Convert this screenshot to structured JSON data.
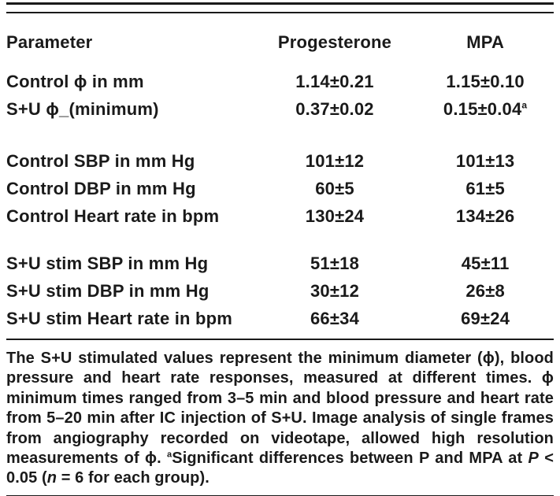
{
  "page": {
    "background": "#ffffff",
    "text_color": "#1a1a1a",
    "rule_color": "#1a1a1a"
  },
  "table": {
    "header": {
      "parameter": "Parameter",
      "progesterone": "Progesterone",
      "mpa": "MPA"
    },
    "groups": [
      {
        "rows": [
          {
            "label": "Control ϕ in mm",
            "progesterone": "1.14±0.21",
            "mpa": "1.15±0.10"
          },
          {
            "label": "S+U ϕ_(minimum)",
            "progesterone": "0.37±0.02",
            "mpa": "0.15±0.04",
            "mpa_sup": "a"
          }
        ]
      },
      {
        "rows": [
          {
            "label": "Control SBP in mm Hg",
            "progesterone": "101±12",
            "mpa": "101±13"
          },
          {
            "label": "Control DBP in mm Hg",
            "progesterone": "60±5",
            "mpa": "61±5"
          },
          {
            "label": "Control Heart rate in bpm",
            "progesterone": "130±24",
            "mpa": "134±26"
          }
        ]
      },
      {
        "rows": [
          {
            "label": "S+U stim SBP in mm Hg",
            "progesterone": "51±18",
            "mpa": "45±11"
          },
          {
            "label": "S+U stim DBP in mm Hg",
            "progesterone": "30±12",
            "mpa": "26±8"
          },
          {
            "label": "S+U stim Heart rate in bpm",
            "progesterone": "66±34",
            "mpa": "69±24"
          }
        ]
      }
    ]
  },
  "footnote": {
    "text_before_marker": "The S+U stimulated values represent the minimum diameter (ϕ), blood pressure and heart rate responses, measured at different times. ϕ minimum times ranged from 3–5 min and blood pressure and heart rate from 5–20 min after IC injection of S+U. Image analysis of single frames from angiography recorded on videotape, allowed high resolution measurements of ϕ. ",
    "marker": "a",
    "text_after_marker": "Significant differences between P and MPA at ",
    "p_symbol": "P",
    "text_mid": " < 0.05 (",
    "n_symbol": "n",
    "text_end": " = 6 for each group)."
  }
}
